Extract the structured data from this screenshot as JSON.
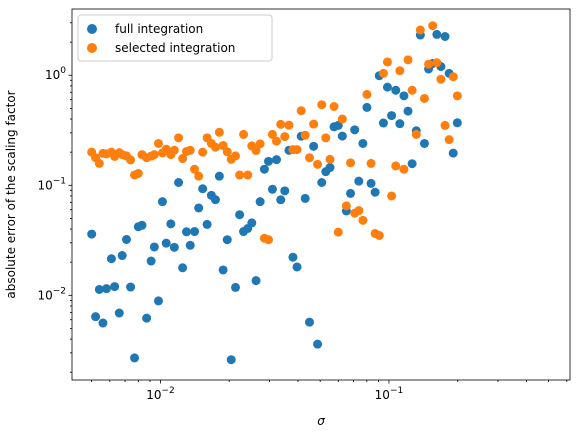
{
  "chart_data": {
    "type": "scatter",
    "title": "",
    "xlabel": "σ",
    "ylabel": "absolute error of the scaling factor",
    "xscale": "log",
    "yscale": "log",
    "xlim": [
      0.0041,
      0.62
    ],
    "ylim": [
      0.0017,
      4.0
    ],
    "grid": false,
    "legend": "top-left",
    "x_ticks": [
      {
        "value": 0.01,
        "base": "10",
        "exp": "−2"
      },
      {
        "value": 0.1,
        "base": "10",
        "exp": "−1"
      }
    ],
    "y_ticks": [
      {
        "value": 0.01,
        "base": "10",
        "exp": "−2"
      },
      {
        "value": 0.1,
        "base": "10",
        "exp": "−1"
      },
      {
        "value": 1,
        "base": "10",
        "exp": "0"
      }
    ],
    "series": [
      {
        "name": "full integration",
        "color": "#1f77b4",
        "points": [
          [
            0.005,
            0.036
          ],
          [
            0.0052,
            0.0064
          ],
          [
            0.0054,
            0.0113
          ],
          [
            0.0056,
            0.0056
          ],
          [
            0.0058,
            0.0115
          ],
          [
            0.0061,
            0.0215
          ],
          [
            0.0063,
            0.012
          ],
          [
            0.0066,
            0.0069
          ],
          [
            0.0068,
            0.023
          ],
          [
            0.0071,
            0.0322
          ],
          [
            0.0074,
            0.0119
          ],
          [
            0.0077,
            0.0027
          ],
          [
            0.008,
            0.042
          ],
          [
            0.0083,
            0.0433
          ],
          [
            0.0087,
            0.0062
          ],
          [
            0.0091,
            0.0205
          ],
          [
            0.0094,
            0.0275
          ],
          [
            0.0098,
            0.0089
          ],
          [
            0.0102,
            0.071
          ],
          [
            0.0106,
            0.0298
          ],
          [
            0.0111,
            0.0446
          ],
          [
            0.0115,
            0.0273
          ],
          [
            0.012,
            0.106
          ],
          [
            0.0125,
            0.0178
          ],
          [
            0.013,
            0.0378
          ],
          [
            0.0135,
            0.0285
          ],
          [
            0.0141,
            0.038
          ],
          [
            0.0147,
            0.0622
          ],
          [
            0.0153,
            0.093
          ],
          [
            0.016,
            0.0441
          ],
          [
            0.0167,
            0.081
          ],
          [
            0.0174,
            0.074
          ],
          [
            0.0181,
            0.121
          ],
          [
            0.0188,
            0.017
          ],
          [
            0.0196,
            0.032
          ],
          [
            0.0204,
            0.0026
          ],
          [
            0.0213,
            0.0118
          ],
          [
            0.0222,
            0.054
          ],
          [
            0.0231,
            0.038
          ],
          [
            0.0241,
            0.0405
          ],
          [
            0.0251,
            0.0455
          ],
          [
            0.0262,
            0.0136
          ],
          [
            0.0273,
            0.071
          ],
          [
            0.0285,
            0.14
          ],
          [
            0.0297,
            0.165
          ],
          [
            0.0309,
            0.092
          ],
          [
            0.0322,
            0.171
          ],
          [
            0.0336,
            0.0738
          ],
          [
            0.035,
            0.089
          ],
          [
            0.0365,
            0.208
          ],
          [
            0.038,
            0.0222
          ],
          [
            0.0396,
            0.0181
          ],
          [
            0.0413,
            0.279
          ],
          [
            0.043,
            0.076
          ],
          [
            0.0449,
            0.0057
          ],
          [
            0.0468,
            0.226
          ],
          [
            0.0487,
            0.0036
          ],
          [
            0.0508,
            0.106
          ],
          [
            0.0529,
            0.133
          ],
          [
            0.0552,
            0.145
          ],
          [
            0.0575,
            0.34
          ],
          [
            0.06,
            0.35
          ],
          [
            0.0625,
            0.28
          ],
          [
            0.0651,
            0.0585
          ],
          [
            0.0679,
            0.0844
          ],
          [
            0.0708,
            0.319
          ],
          [
            0.0738,
            0.109
          ],
          [
            0.0769,
            0.24
          ],
          [
            0.0801,
            0.51
          ],
          [
            0.0835,
            0.104
          ],
          [
            0.087,
            0.0865
          ],
          [
            0.0907,
            0.99
          ],
          [
            0.0946,
            0.368
          ],
          [
            0.0985,
            0.78
          ],
          [
            0.1027,
            0.43
          ],
          [
            0.1071,
            0.73
          ],
          [
            0.1116,
            0.363
          ],
          [
            0.1163,
            0.65
          ],
          [
            0.1212,
            0.472
          ],
          [
            0.1263,
            0.157
          ],
          [
            0.1317,
            0.313
          ],
          [
            0.1372,
            2.32
          ],
          [
            0.143,
            0.24
          ],
          [
            0.1491,
            1.14
          ],
          [
            0.1554,
            1.28
          ],
          [
            0.162,
            2.35
          ],
          [
            0.1688,
            1.2
          ],
          [
            0.176,
            2.25
          ],
          [
            0.1834,
            1.04
          ],
          [
            0.1911,
            0.196
          ],
          [
            0.1992,
            0.37
          ]
        ]
      },
      {
        "name": "selected integration",
        "color": "#ff7f0e",
        "points": [
          [
            0.005,
            0.2
          ],
          [
            0.0052,
            0.178
          ],
          [
            0.0054,
            0.158
          ],
          [
            0.0056,
            0.195
          ],
          [
            0.0058,
            0.193
          ],
          [
            0.0061,
            0.2
          ],
          [
            0.0063,
            0.183
          ],
          [
            0.0066,
            0.198
          ],
          [
            0.0068,
            0.19
          ],
          [
            0.0071,
            0.185
          ],
          [
            0.0074,
            0.17
          ],
          [
            0.0077,
            0.124
          ],
          [
            0.008,
            0.128
          ],
          [
            0.0083,
            0.19
          ],
          [
            0.0087,
            0.178
          ],
          [
            0.0091,
            0.184
          ],
          [
            0.0094,
            0.19
          ],
          [
            0.0098,
            0.24
          ],
          [
            0.0102,
            0.197
          ],
          [
            0.0106,
            0.213
          ],
          [
            0.0111,
            0.19
          ],
          [
            0.0115,
            0.208
          ],
          [
            0.012,
            0.27
          ],
          [
            0.0125,
            0.175
          ],
          [
            0.013,
            0.203
          ],
          [
            0.0135,
            0.208
          ],
          [
            0.0141,
            0.14
          ],
          [
            0.0147,
            0.121
          ],
          [
            0.0153,
            0.2
          ],
          [
            0.016,
            0.27
          ],
          [
            0.0167,
            0.24
          ],
          [
            0.0174,
            0.222
          ],
          [
            0.0181,
            0.303
          ],
          [
            0.0188,
            0.23
          ],
          [
            0.0196,
            0.202
          ],
          [
            0.0204,
            0.172
          ],
          [
            0.0213,
            0.185
          ],
          [
            0.0222,
            0.124
          ],
          [
            0.0231,
            0.29
          ],
          [
            0.0241,
            0.124
          ],
          [
            0.0251,
            0.228
          ],
          [
            0.0262,
            0.207
          ],
          [
            0.0273,
            0.238
          ],
          [
            0.0285,
            0.033
          ],
          [
            0.0297,
            0.032
          ],
          [
            0.0309,
            0.29
          ],
          [
            0.0322,
            0.252
          ],
          [
            0.0336,
            0.358
          ],
          [
            0.035,
            0.277
          ],
          [
            0.0365,
            0.352
          ],
          [
            0.038,
            0.211
          ],
          [
            0.0396,
            0.211
          ],
          [
            0.0413,
            0.476
          ],
          [
            0.043,
            0.285
          ],
          [
            0.0449,
            0.178
          ],
          [
            0.0468,
            0.36
          ],
          [
            0.0487,
            0.155
          ],
          [
            0.0508,
            0.54
          ],
          [
            0.0529,
            0.27
          ],
          [
            0.0552,
            0.172
          ],
          [
            0.0575,
            0.52
          ],
          [
            0.06,
            0.0375
          ],
          [
            0.0625,
            0.4
          ],
          [
            0.0651,
            0.065
          ],
          [
            0.0679,
            0.16
          ],
          [
            0.0708,
            0.0558
          ],
          [
            0.0738,
            0.0589
          ],
          [
            0.0769,
            0.048
          ],
          [
            0.0801,
            0.67
          ],
          [
            0.0835,
            0.158
          ],
          [
            0.087,
            0.0365
          ],
          [
            0.0907,
            0.035
          ],
          [
            0.0946,
            1.04
          ],
          [
            0.0985,
            1.32
          ],
          [
            0.1027,
            0.08
          ],
          [
            0.1071,
            0.15
          ],
          [
            0.1116,
            1.1
          ],
          [
            0.1163,
            0.14
          ],
          [
            0.1212,
            1.38
          ],
          [
            0.1263,
            0.73
          ],
          [
            0.1317,
            0.29
          ],
          [
            0.1372,
            2.58
          ],
          [
            0.143,
            0.615
          ],
          [
            0.1491,
            1.26
          ],
          [
            0.1554,
            2.82
          ],
          [
            0.162,
            1.3
          ],
          [
            0.1688,
            0.92
          ],
          [
            0.176,
            0.35
          ],
          [
            0.1834,
            0.26
          ],
          [
            0.1911,
            0.97
          ],
          [
            0.1992,
            0.65
          ]
        ]
      }
    ]
  }
}
